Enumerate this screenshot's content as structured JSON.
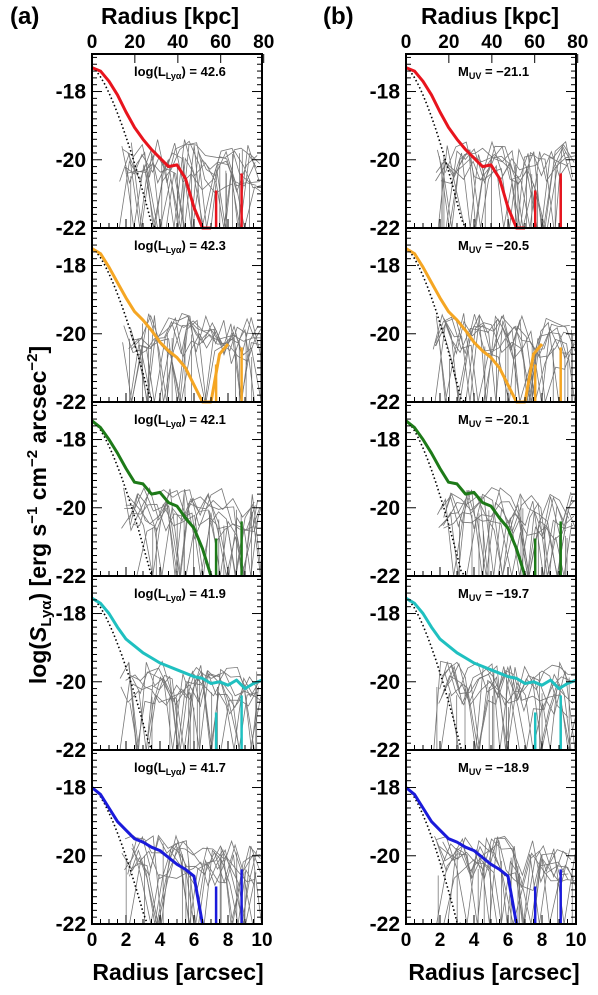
{
  "chart_data": {
    "type": "line",
    "column_labels": [
      "(a)",
      "(b)"
    ],
    "top_axis_label": "Radius [kpc]",
    "top_ticks": [
      "0",
      "20",
      "40",
      "60",
      "80"
    ],
    "top_tick_values_arcsec": [
      0,
      2.52,
      5.05,
      7.57,
      10.1
    ],
    "xlabel": "Radius [arcsec]",
    "x_ticks": [
      "0",
      "2",
      "4",
      "6",
      "8",
      "10"
    ],
    "xlim": [
      0,
      10
    ],
    "ylabel": "log(S_Lyα) [erg s⁻¹ cm⁻² arcsec⁻²]",
    "y_ticks": [
      "-18",
      "-20",
      "-22"
    ],
    "ylim": [
      -22,
      -16.9
    ],
    "grid": false,
    "colors": [
      "#e8141d",
      "#f5a623",
      "#1d7a18",
      "#1fc0c0",
      "#1a1adb"
    ],
    "panels_a": [
      {
        "ann_prefix": "log(L",
        "ann_sub": "Lyα",
        "ann_suffix": ") = 42.6"
      },
      {
        "ann_prefix": "log(L",
        "ann_sub": "Lyα",
        "ann_suffix": ") = 42.3"
      },
      {
        "ann_prefix": "log(L",
        "ann_sub": "Lyα",
        "ann_suffix": ") = 42.1"
      },
      {
        "ann_prefix": "log(L",
        "ann_sub": "Lyα",
        "ann_suffix": ") = 41.9"
      },
      {
        "ann_prefix": "log(L",
        "ann_sub": "Lyα",
        "ann_suffix": ") = 41.7"
      }
    ],
    "panels_b": [
      {
        "ann_prefix": "M",
        "ann_sub": "UV",
        "ann_suffix": " = −21.1"
      },
      {
        "ann_prefix": "M",
        "ann_sub": "UV",
        "ann_suffix": " = −20.5"
      },
      {
        "ann_prefix": "M",
        "ann_sub": "UV",
        "ann_suffix": " = −20.1"
      },
      {
        "ann_prefix": "M",
        "ann_sub": "UV",
        "ann_suffix": " = −19.7"
      },
      {
        "ann_prefix": "M",
        "ann_sub": "UV",
        "ann_suffix": " = −18.9"
      }
    ],
    "series": [
      {
        "x": [
          0,
          0.5,
          1,
          1.5,
          2,
          2.5,
          3,
          3.5,
          4,
          4.5,
          5,
          5.5,
          6,
          6.5,
          7
        ],
        "y": [
          -17.3,
          -17.4,
          -17.7,
          -18.1,
          -18.6,
          -19.05,
          -19.4,
          -19.7,
          -19.95,
          -20.2,
          -20.15,
          -20.55,
          -21.4,
          -22,
          -22
        ]
      },
      {
        "x": [
          0,
          0.5,
          1,
          1.5,
          2,
          2.5,
          3,
          3.5,
          4,
          4.5,
          5,
          5.5,
          6,
          6.5,
          7,
          7.5,
          8
        ],
        "y": [
          -17.5,
          -17.65,
          -18.05,
          -18.5,
          -18.95,
          -19.35,
          -19.6,
          -19.9,
          -20.25,
          -20.5,
          -20.7,
          -21.0,
          -21.5,
          -22,
          -22,
          -20.6,
          -20.3
        ]
      },
      {
        "x": [
          0,
          0.5,
          1,
          1.5,
          2,
          2.5,
          3,
          3.5,
          4,
          4.5,
          5,
          5.5,
          6,
          6.5,
          7
        ],
        "y": [
          -17.45,
          -17.65,
          -18.0,
          -18.4,
          -18.85,
          -19.25,
          -19.3,
          -19.6,
          -19.55,
          -19.85,
          -19.95,
          -20.3,
          -20.6,
          -21.2,
          -22
        ]
      },
      {
        "x": [
          0,
          0.5,
          1,
          1.5,
          2,
          2.5,
          3,
          3.5,
          4,
          4.5,
          5,
          5.5,
          6,
          6.5,
          7,
          7.5,
          8,
          8.5,
          9,
          9.5,
          10
        ],
        "y": [
          -17.55,
          -17.7,
          -18.0,
          -18.4,
          -18.75,
          -18.95,
          -19.15,
          -19.3,
          -19.45,
          -19.55,
          -19.65,
          -19.75,
          -19.85,
          -19.9,
          -20.05,
          -20.0,
          -20.1,
          -19.95,
          -20.2,
          -20.05,
          -19.95
        ]
      },
      {
        "x": [
          0,
          0.5,
          1,
          1.5,
          2,
          2.5,
          3,
          3.5,
          4,
          4.5,
          5,
          5.5,
          6,
          6.5
        ],
        "y": [
          -18.0,
          -18.2,
          -18.6,
          -19.0,
          -19.25,
          -19.5,
          -19.6,
          -19.75,
          -19.85,
          -20.05,
          -20.25,
          -20.4,
          -20.6,
          -22
        ]
      }
    ]
  }
}
